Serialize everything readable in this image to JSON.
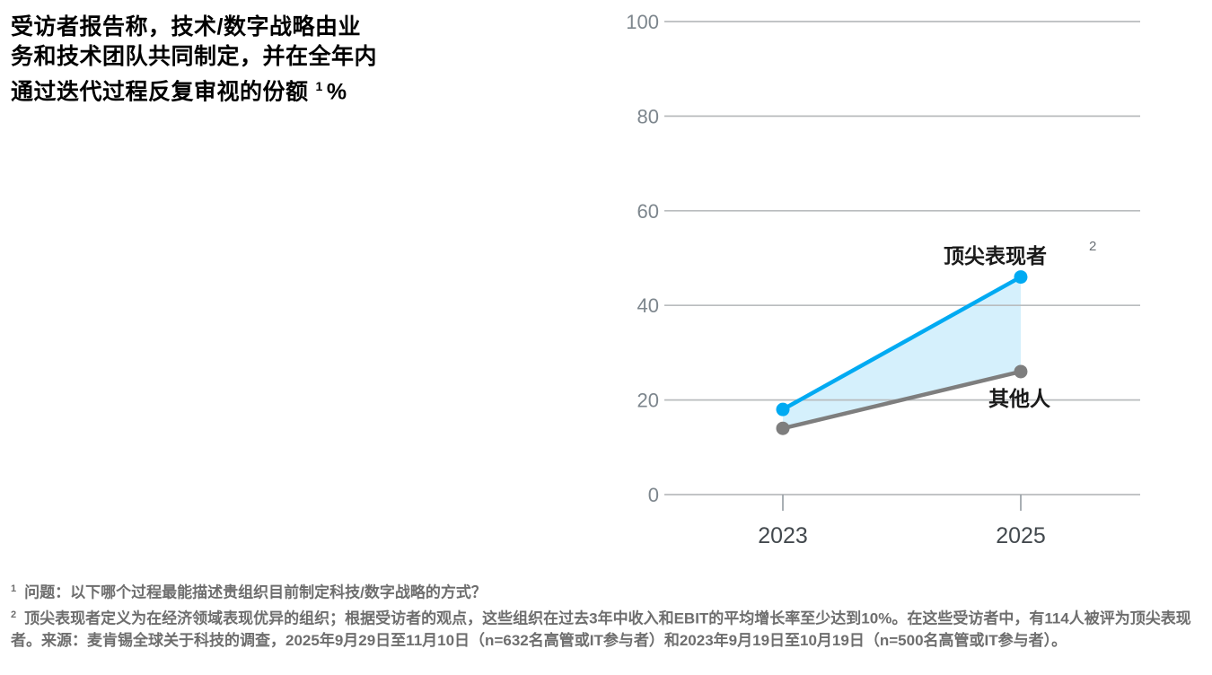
{
  "title": {
    "text": "受访者报告称，技术/数字战略由业\n务和技术团队共同制定，并在全年内\n通过迭代过程反复审视的份额",
    "footnote_ref": "1",
    "unit": "%"
  },
  "chart_data": {
    "type": "line",
    "x": [
      "2023",
      "2025"
    ],
    "series": [
      {
        "name": "顶尖表现者",
        "footnote_ref": "2",
        "values": [
          18,
          46
        ],
        "color": "#00aaf2"
      },
      {
        "name": "其他人",
        "values": [
          14,
          26
        ],
        "color": "#7e7e7e"
      }
    ],
    "ylim": [
      0,
      100
    ],
    "yticks": [
      0,
      20,
      40,
      60,
      80,
      100
    ],
    "grid": true,
    "legend_position": "inline-labels",
    "area_between": true,
    "area_color": "#d5f0fc",
    "gridline_color": "#b9bcbe",
    "y_label_color": "#7d868d",
    "x_label_color": "#43494e",
    "series_label_color": "#1a1a1a"
  },
  "footnotes": [
    {
      "marker": "1",
      "text": "问题：以下哪个过程最能描述贵组织目前制定科技/数字战略的方式？"
    },
    {
      "marker": "2",
      "text": "顶尖表现者定义为在经济领域表现优异的组织；根据受访者的观点，这些组织在过去3年中收入和EBIT的平均增长率至少达到10%。在这些受访者中，有114人被评为顶尖表现者。来源：麦肯锡全球关于科技的调查，2025年9月29日至11月10日（n=632名高管或IT参与者）和2023年9月19日至10月19日（n=500名高管或IT参与者）。"
    }
  ]
}
